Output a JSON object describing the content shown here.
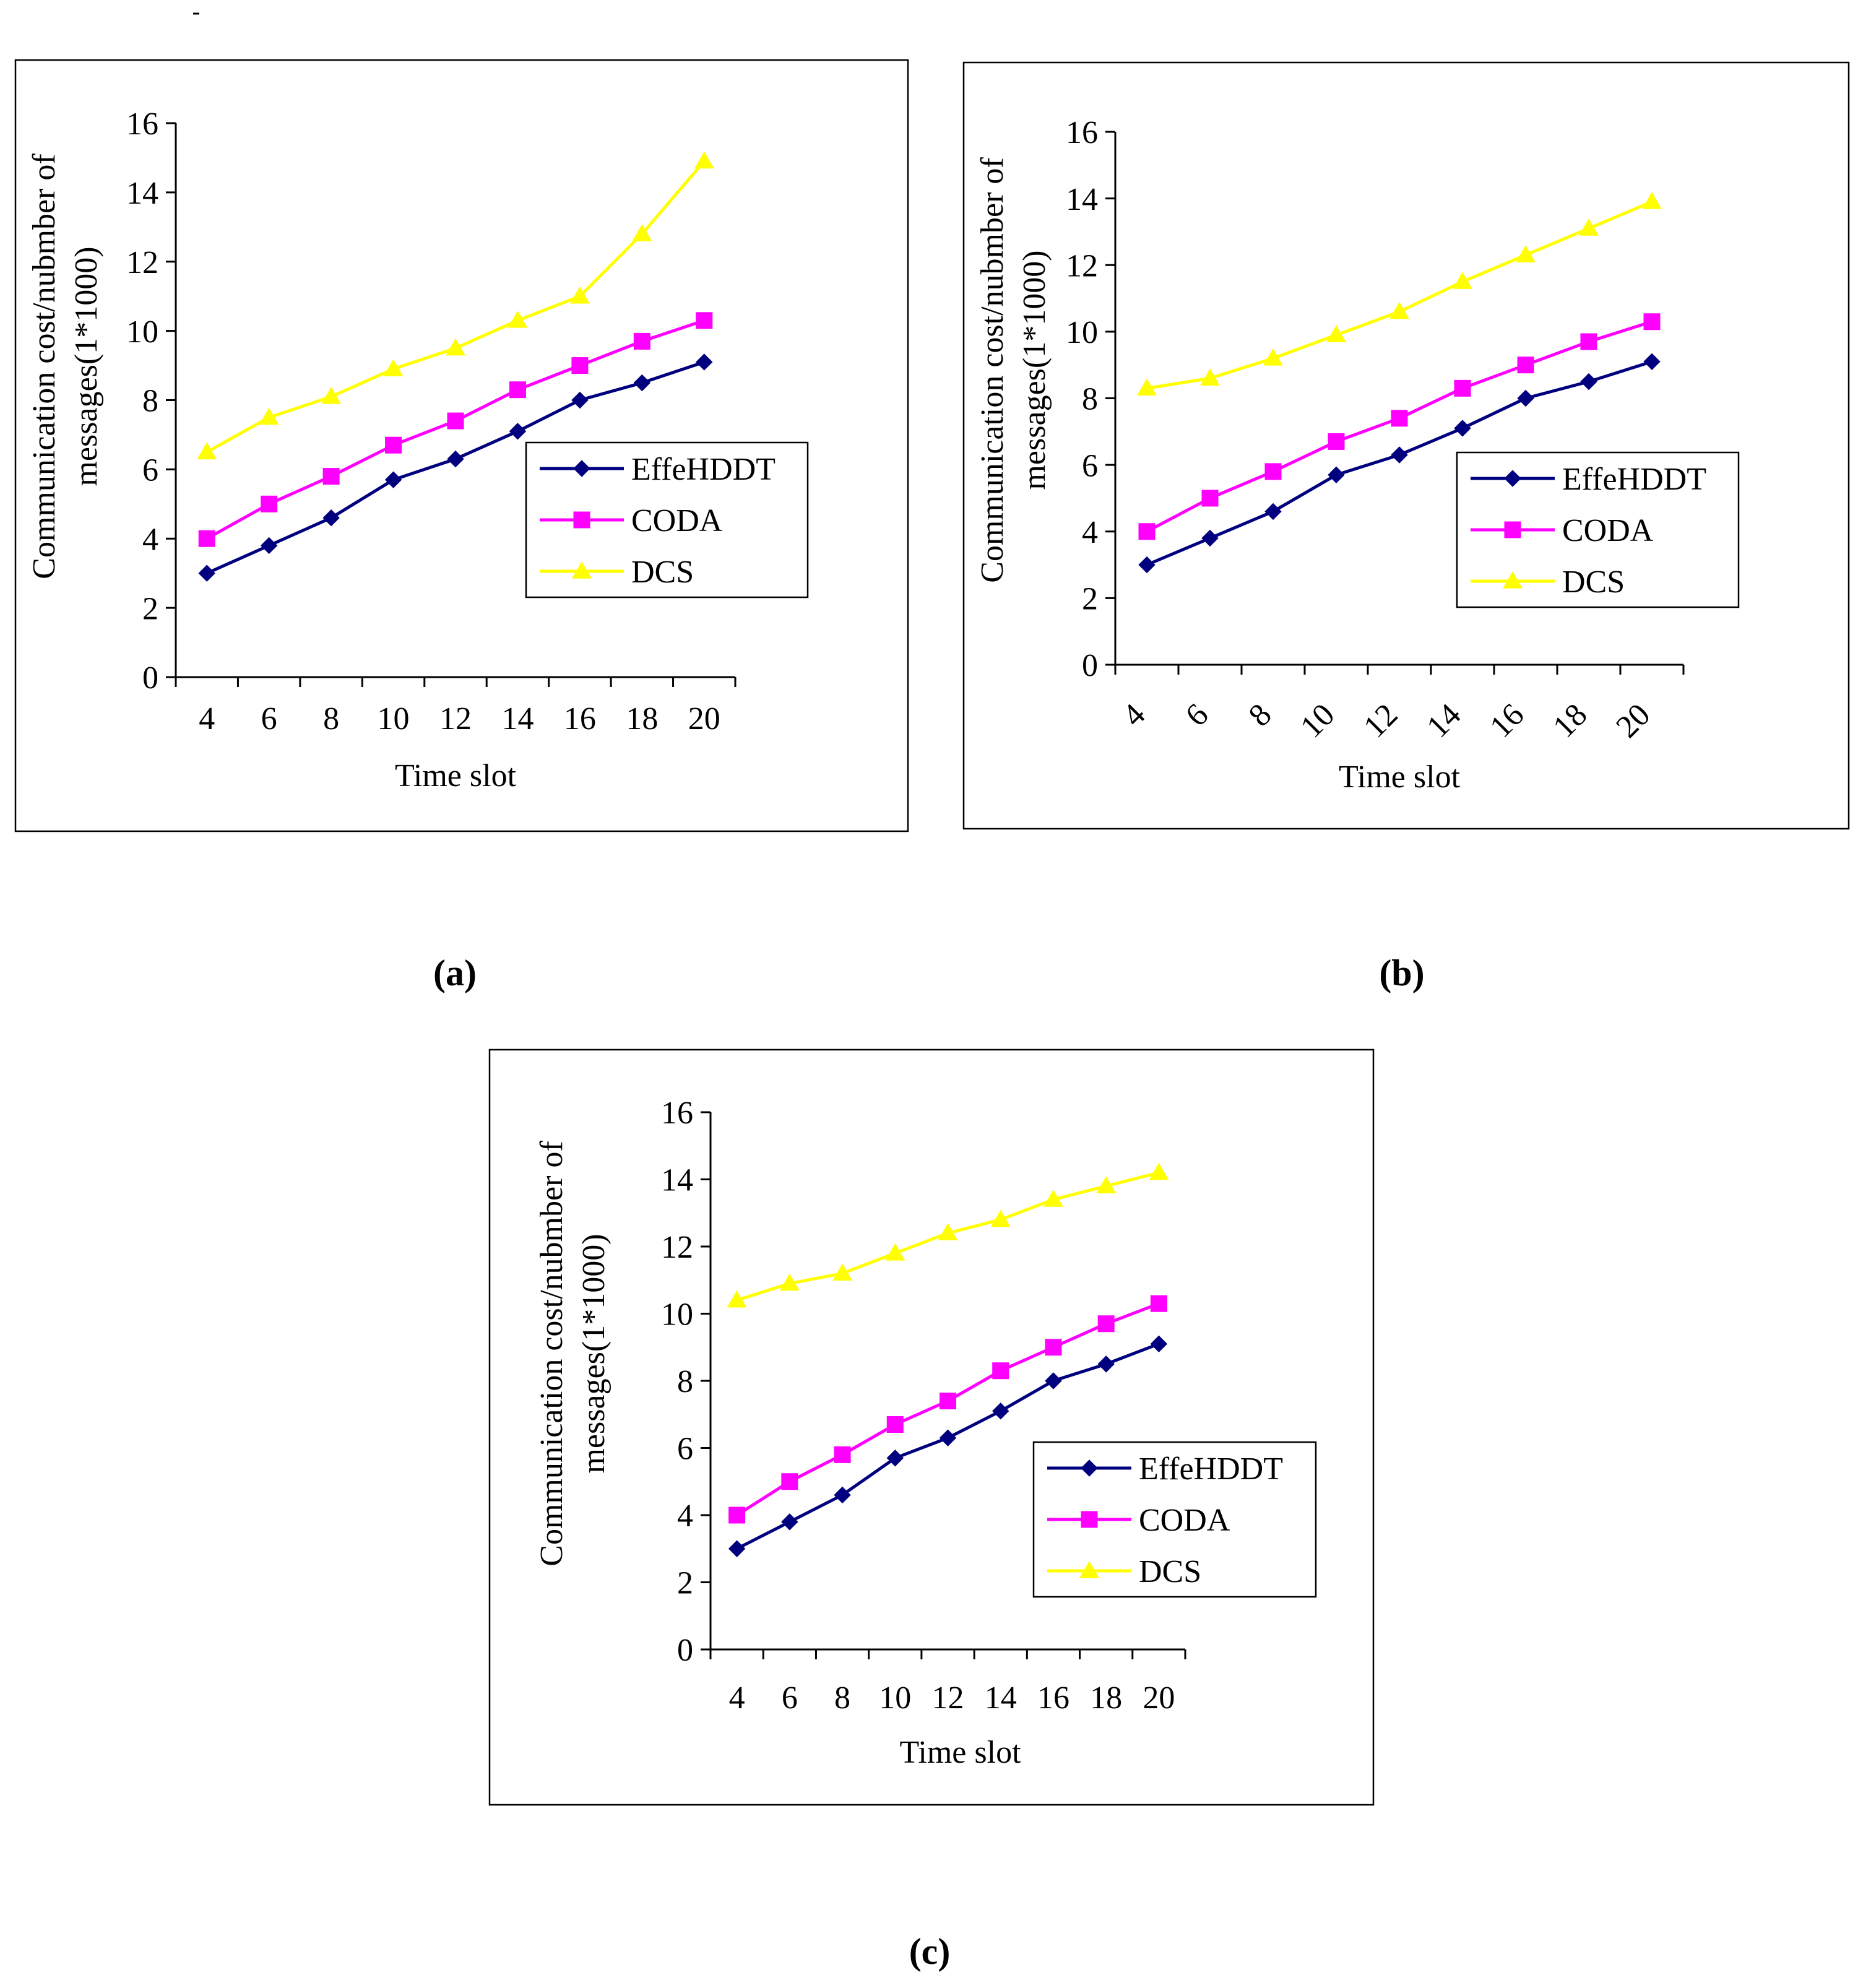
{
  "colors": {
    "effehddt": "#00007f",
    "coda": "#ff00ff",
    "dcs": "#ffff00",
    "axis": "#000000",
    "frame": "#000000",
    "background": "#ffffff"
  },
  "chart_data": [
    {
      "type": "line",
      "caption": "(a)",
      "xlabel": "Time slot",
      "ylabel_line1": "Communication cost/nubmber of",
      "ylabel_line2": "messages(1*1000)",
      "x": [
        4,
        6,
        8,
        10,
        12,
        14,
        16,
        18,
        20
      ],
      "x_tick_labels": [
        "4",
        "6",
        "8",
        "10",
        "12",
        "14",
        "16",
        "18",
        "20"
      ],
      "x_tick_rotation": 0,
      "ylim": [
        0,
        16
      ],
      "y_ticks": [
        0,
        2,
        4,
        6,
        8,
        10,
        12,
        14,
        16
      ],
      "y_tick_labels": [
        "0",
        "2",
        "4",
        "6",
        "8",
        "10",
        "12",
        "14",
        "16"
      ],
      "legend": "right",
      "series": [
        {
          "name": "EffeHDDT",
          "marker": "diamond",
          "values": [
            3.0,
            3.8,
            4.6,
            5.7,
            6.3,
            7.1,
            8.0,
            8.5,
            9.1
          ]
        },
        {
          "name": "CODA",
          "marker": "square",
          "values": [
            4.0,
            5.0,
            5.8,
            6.7,
            7.4,
            8.3,
            9.0,
            9.7,
            10.3
          ]
        },
        {
          "name": "DCS",
          "marker": "triangle",
          "values": [
            6.5,
            7.5,
            8.1,
            8.9,
            9.5,
            10.3,
            11.0,
            12.8,
            14.9
          ]
        }
      ]
    },
    {
      "type": "line",
      "caption": "(b)",
      "xlabel": "Time slot",
      "ylabel_line1": "Communication cost/nubmber of",
      "ylabel_line2": "messages(1*1000)",
      "x": [
        4,
        6,
        8,
        10,
        12,
        14,
        16,
        18,
        20
      ],
      "x_tick_labels": [
        "4",
        "6",
        "8",
        "10",
        "12",
        "14",
        "16",
        "18",
        "20"
      ],
      "x_tick_rotation": -45,
      "ylim": [
        0,
        16
      ],
      "y_ticks": [
        0,
        2,
        4,
        6,
        8,
        10,
        12,
        14,
        16
      ],
      "y_tick_labels": [
        "0",
        "2",
        "4",
        "6",
        "8",
        "10",
        "12",
        "14",
        "16"
      ],
      "legend": "right",
      "series": [
        {
          "name": "EffeHDDT",
          "marker": "diamond",
          "values": [
            3.0,
            3.8,
            4.6,
            5.7,
            6.3,
            7.1,
            8.0,
            8.5,
            9.1
          ]
        },
        {
          "name": "CODA",
          "marker": "square",
          "values": [
            4.0,
            5.0,
            5.8,
            6.7,
            7.4,
            8.3,
            9.0,
            9.7,
            10.3
          ]
        },
        {
          "name": "DCS",
          "marker": "triangle",
          "values": [
            8.3,
            8.6,
            9.2,
            9.9,
            10.6,
            11.5,
            12.3,
            13.1,
            13.9
          ]
        }
      ]
    },
    {
      "type": "line",
      "caption": "(c)",
      "xlabel": "Time slot",
      "ylabel_line1": "Communication cost/nubmber of",
      "ylabel_line2": "messages(1*1000)",
      "x": [
        4,
        6,
        8,
        10,
        12,
        14,
        16,
        18,
        20
      ],
      "x_tick_labels": [
        "4",
        "6",
        "8",
        "10",
        "12",
        "14",
        "16",
        "18",
        "20"
      ],
      "x_tick_rotation": 0,
      "ylim": [
        0,
        16
      ],
      "y_ticks": [
        0,
        2,
        4,
        6,
        8,
        10,
        12,
        14,
        16
      ],
      "y_tick_labels": [
        "0",
        "2",
        "4",
        "6",
        "8",
        "10",
        "12",
        "14",
        "16"
      ],
      "legend": "bottom-right",
      "series": [
        {
          "name": "EffeHDDT",
          "marker": "diamond",
          "values": [
            3.0,
            3.8,
            4.6,
            5.7,
            6.3,
            7.1,
            8.0,
            8.5,
            9.1
          ]
        },
        {
          "name": "CODA",
          "marker": "square",
          "values": [
            4.0,
            5.0,
            5.8,
            6.7,
            7.4,
            8.3,
            9.0,
            9.7,
            10.3
          ]
        },
        {
          "name": "DCS",
          "marker": "triangle",
          "values": [
            10.4,
            10.9,
            11.2,
            11.8,
            12.4,
            12.8,
            13.4,
            13.8,
            14.2
          ]
        }
      ]
    }
  ]
}
